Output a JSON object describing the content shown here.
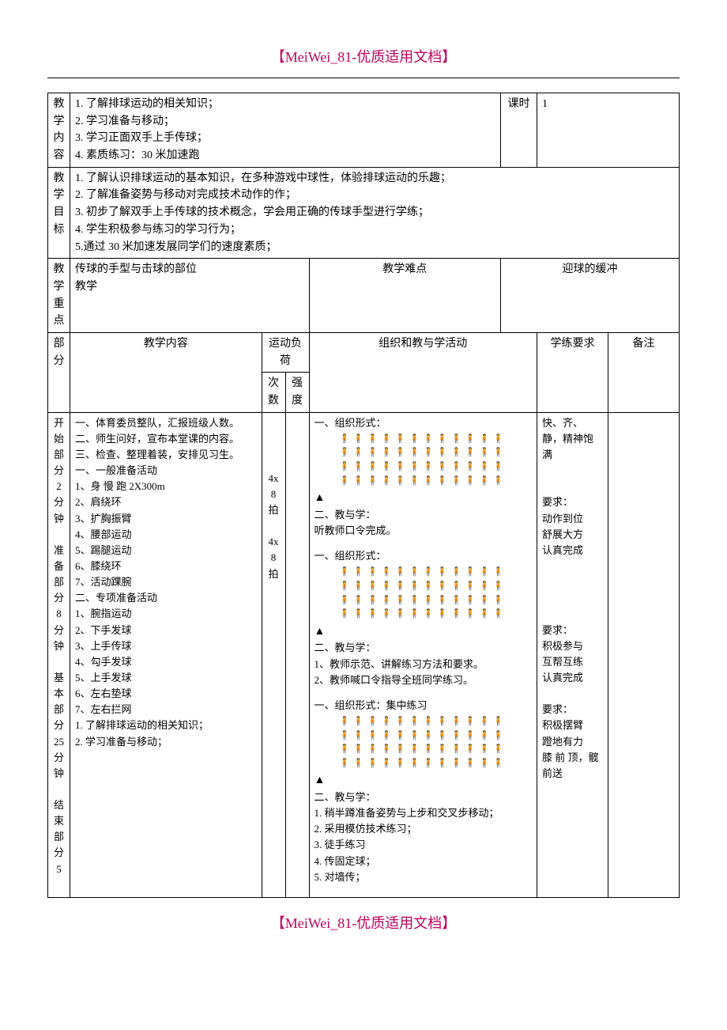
{
  "header": "【MeiWei_81-优质适用文档】",
  "footer": "【MeiWei_81-优质适用文档】",
  "colors": {
    "title": "#c00060",
    "text": "#000000",
    "border": "#000000",
    "background": "#ffffff"
  },
  "labels": {
    "jiaoxue_neirong_v": "教学内容",
    "keshi": "课时",
    "keshi_value": "1",
    "jiaoxue_mubiao_v": "教学目标",
    "jiaoxue_zhongdian_v": "教学重点",
    "jiaoxue_nandian_v": "教学难点",
    "bufen": "部分",
    "jiaoxue_neirong": "教学内容",
    "yundong_fuhe": "运动负荷",
    "cishu": "次数",
    "qiangdu": "强度",
    "zuzhi": "组织和教与学活动",
    "xuelian": "学练要求",
    "beizhu": "备注"
  },
  "top_content": "1. 了解排球运动的相关知识；\n2. 学习准备与移动；\n3. 学习正面双手上手传球；\n4. 素质练习：30 米加速跑",
  "goals": "1. 了解认识排球运动的基本知识，在多种游戏中球性，体验排球运动的乐趣；\n2. 了解准备姿势与移动对完成技术动作的作；\n3. 初步了解双手上手传球的技术概念，学会用正确的传球手型进行学练；\n4. 学生积极参与练习的学习行为；\n5.通过 30 米加速发展同学们的速度素质；",
  "zhongdian": "传球的手型与击球的部位\n教学",
  "nandian": "迎球的缓冲",
  "sections": {
    "bufen": "开始部分\n2\n分\n钟\n\n准备部分\n8\n分\n钟\n\n基本部分\n25\n分\n钟\n\n结束部分\n5",
    "content": "一、体育委员整队，汇报班级人数。\n二、师生问好，宣布本堂课的内容。\n三、检查、整理着装，安排见习生。\n一、一般准备活动\n1、身 慢 跑 2X300m\n2、肩绕环\n3、扩胸振臂\n4、腰部运动\n5、踢腿运动\n6、膝绕环\n7、活动踝腕\n二、专项准备活动\n1、腕指运动\n2、下手发球\n3、上手传球\n4、勾手发球\n5、上手发球\n6、左右垫球\n7、左右拦网\n1. 了解排球运动的相关知识；\n2. 学习准备与移动；",
    "cishu": "4x\n8\n拍\n\n4x\n8\n拍",
    "qiangdu": "",
    "org_blocks": [
      {
        "title1": "一、组织形式：",
        "people_rows": 4,
        "people_cols": 12,
        "triangle": "▲",
        "title2": "二、教与学：",
        "body": "    听教师口令完成。"
      },
      {
        "title1": "一、组织形式：",
        "people_rows": 4,
        "people_cols": 12,
        "triangle": "▲",
        "title2": "二、教与学：",
        "body": "1、教师示范、讲解练习方法和要求。\n2、教师喊口令指导全班同学练习。"
      },
      {
        "title1": "一、组织形式：集中练习",
        "people_rows": 4,
        "people_cols": 12,
        "triangle": "▲",
        "title2": "二、教与学：",
        "body": "1. 稍半蹲准备姿势与上步和交叉步移动；\n2. 采用模仿技术练习；\n3. 徒手练习\n4. 传固定球；\n5. 对墙传；"
      }
    ],
    "requirements": "快、齐、静，精神饱满\n\n\n要求：\n动作到位\n舒展大方\n认真完成\n\n\n\n\n要求：\n积极参与\n互帮互练\n认真完成\n\n要求：\n积极摆臂\n蹬地有力\n膝 前 顶，髋前送",
    "notes": ""
  },
  "person_glyph": "🧍"
}
